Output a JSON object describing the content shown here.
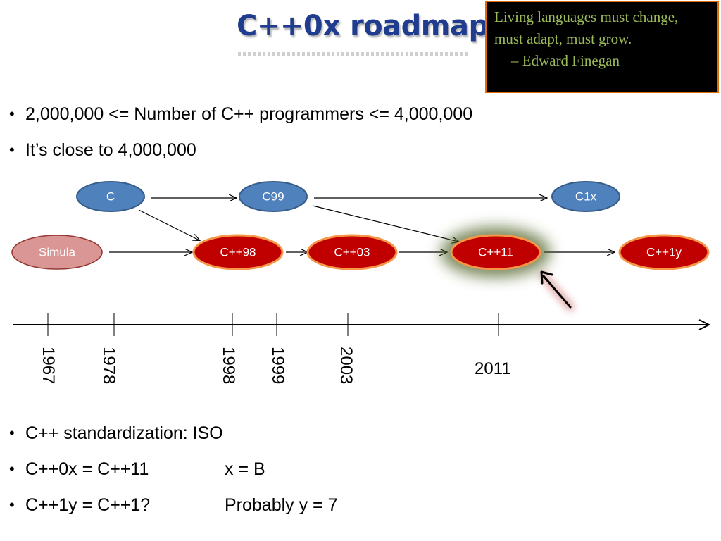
{
  "slide": {
    "title": "C++0x roadmap",
    "quote": {
      "text": "Living languages must change, must adapt, must grow.",
      "author": "– Edward Finegan"
    },
    "bullets_top": [
      "2,000,000 <= Number of C++ programmers <= 4,000,000",
      "It’s close to 4,000,000"
    ],
    "bullets_bottom": [
      {
        "left": "C++ standardization: ISO",
        "right": ""
      },
      {
        "left": "C++0x = C++11",
        "right": "x = B"
      },
      {
        "left": "C++1y = C++1?",
        "right": "Probably y = 7"
      }
    ]
  },
  "diagram": {
    "nodes": {
      "c": "C",
      "c99": "C99",
      "c1x": "C1x",
      "simula": "Simula",
      "cpp98": "C++98",
      "cpp03": "C++03",
      "cpp11": "C++11",
      "cpp1y": "C++1y"
    },
    "timeline_years": [
      "1967",
      "1978",
      "1998",
      "1999",
      "2003"
    ],
    "highlight_year": "2011"
  },
  "colors": {
    "title": "#1f3c8f",
    "quote_bg": "#000000",
    "quote_text": "#9bbb59",
    "quote_border": "#e36c0a",
    "c_nodes_fill": "#4f81bd",
    "c_nodes_stroke": "#385d8a",
    "cpp_nodes_fill": "#c00000",
    "cpp_nodes_stroke": "#f79646",
    "simula_fill": "#d99694",
    "highlight_glow": "#4f6228"
  }
}
